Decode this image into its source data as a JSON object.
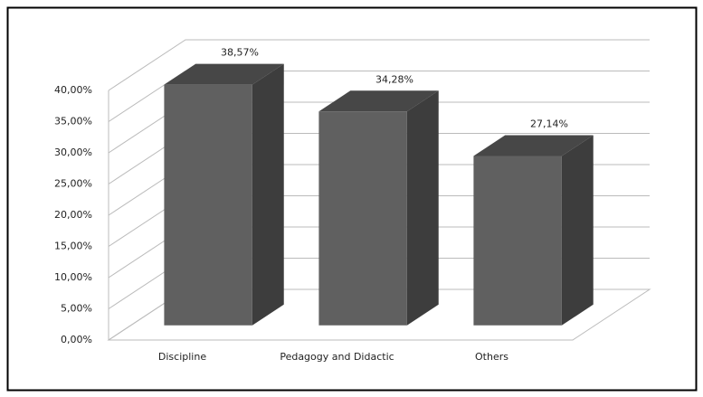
{
  "chart_data": {
    "type": "bar3d",
    "categories": [
      "Discipline",
      "Pedagogy and Didactic",
      "Others"
    ],
    "values": [
      38.57,
      34.28,
      27.14
    ],
    "value_labels": [
      "38,57%",
      "34,28%",
      "27,14%"
    ],
    "color": "#606060",
    "ylim": [
      0,
      40
    ],
    "yticks": [
      {
        "value": 0,
        "label": "0,00%"
      },
      {
        "value": 5,
        "label": "5,00%"
      },
      {
        "value": 10,
        "label": "10,00%"
      },
      {
        "value": 15,
        "label": "15,00%"
      },
      {
        "value": 20,
        "label": "20,00%"
      },
      {
        "value": 25,
        "label": "25,00%"
      },
      {
        "value": 30,
        "label": "30,00%"
      },
      {
        "value": 35,
        "label": "35,00%"
      },
      {
        "value": 40,
        "label": "40,00%"
      }
    ],
    "grid": true
  }
}
